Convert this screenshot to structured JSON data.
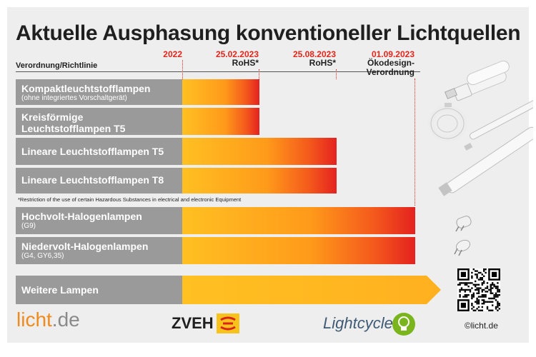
{
  "title": "Aktuelle Ausphasung konventioneller Lichtquellen",
  "header": {
    "column_label": "Verordnung/Richtlinie"
  },
  "milestones": [
    {
      "date": "2022",
      "note": ""
    },
    {
      "date": "25.02.2023",
      "note": "RoHS*"
    },
    {
      "date": "25.08.2023",
      "note": "RoHS*"
    },
    {
      "date": "01.09.2023",
      "note": "Ökodesign-\nVerordnung"
    }
  ],
  "rows": [
    {
      "name": "Kompaktleuchtstofflampen",
      "detail": "(ohne integriertes Vorschaltgerät)",
      "phaseout": "25.02.2023"
    },
    {
      "name": "Kreisförmige Leuchtstofflampen T5",
      "detail": "",
      "phaseout": "25.02.2023"
    },
    {
      "name": "Lineare Leuchtstofflampen T5",
      "detail": "",
      "phaseout": "25.08.2023"
    },
    {
      "name": "Lineare Leuchtstofflampen T8",
      "detail": "",
      "phaseout": "25.08.2023"
    },
    {
      "name": "Hochvolt-Halogenlampen",
      "detail": "(G9)",
      "phaseout": "01.09.2023"
    },
    {
      "name": "Niedervolt-Halogenlampen",
      "detail": "(G4, GY6,35)",
      "phaseout": "01.09.2023"
    },
    {
      "name": "Weitere Lampen",
      "detail": "",
      "phaseout": "offen"
    }
  ],
  "footnote": "*Restriction of the use of certain Hazardous Substances in electrical and electronic Equipment",
  "footer": {
    "logo_licht_a": "licht",
    "logo_licht_b": ".de",
    "logo_zveh": "ZVEH",
    "logo_lightcycle": "Lightcycle",
    "copyright": "©licht.de"
  },
  "colors": {
    "accent_red": "#e3251b",
    "bar_yellow": "#ffc022",
    "bar_red": "#e42220",
    "label_grey": "#9a9a9a",
    "licht_orange": "#f08a1c",
    "lightcycle_green": "#7ab51d"
  }
}
